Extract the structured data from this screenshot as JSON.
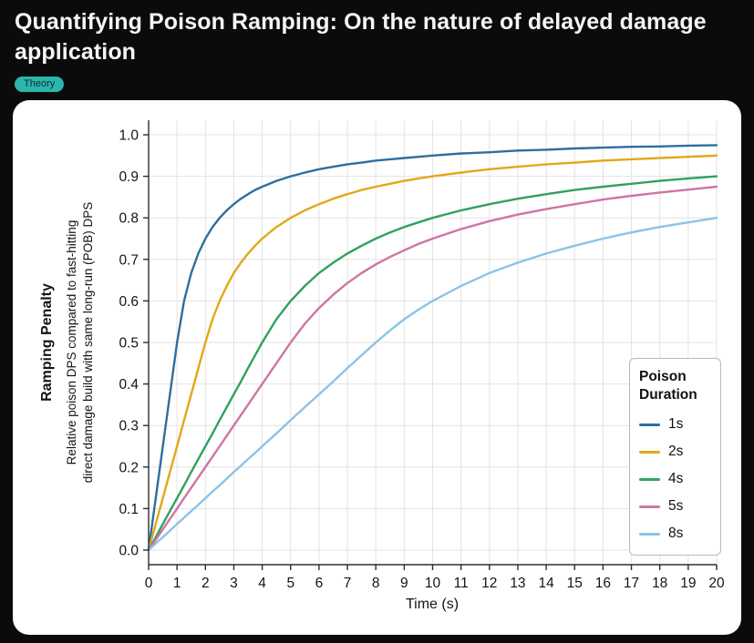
{
  "header": {
    "title": "Quantifying Poison Ramping: On the nature of delayed damage application",
    "tag": "Theory",
    "tag_bg": "#2bb5ad",
    "tag_text": "#083331",
    "page_bg": "#0b0b0b",
    "title_color": "#f5f5f5"
  },
  "chart_data": {
    "type": "line",
    "title": "",
    "xlabel": "Time (s)",
    "ylabel": "Ramping Penalty",
    "ylabel_sub": [
      "Relative poison DPS compared to fast-hitting",
      "direct damage build with same long-run (POB) DPS"
    ],
    "xlim": [
      0,
      20
    ],
    "ylim": [
      0,
      1.0
    ],
    "xticks": [
      0,
      1,
      2,
      3,
      4,
      5,
      6,
      7,
      8,
      9,
      10,
      11,
      12,
      13,
      14,
      15,
      16,
      17,
      18,
      19,
      20
    ],
    "yticks": [
      0.0,
      0.1,
      0.2,
      0.3,
      0.4,
      0.5,
      0.6,
      0.7,
      0.8,
      0.9,
      1.0
    ],
    "grid": true,
    "grid_color": "#e3e3e3",
    "axis_color": "#2e2e2e",
    "legend_title": "Poison Duration",
    "legend_position": "right",
    "x": [
      0,
      0.25,
      0.5,
      0.75,
      1,
      1.25,
      1.5,
      1.75,
      2,
      2.25,
      2.5,
      2.75,
      3,
      3.25,
      3.5,
      3.75,
      4,
      4.5,
      5,
      5.5,
      6,
      6.5,
      7,
      7.5,
      8,
      8.5,
      9,
      9.5,
      10,
      11,
      12,
      13,
      14,
      15,
      16,
      17,
      18,
      19,
      20
    ],
    "series": [
      {
        "name": "1s",
        "color": "#2e6f9e",
        "values": [
          0,
          0.125,
          0.25,
          0.375,
          0.5,
          0.6,
          0.667,
          0.714,
          0.75,
          0.778,
          0.8,
          0.818,
          0.833,
          0.846,
          0.857,
          0.867,
          0.875,
          0.889,
          0.9,
          0.909,
          0.917,
          0.923,
          0.929,
          0.933,
          0.938,
          0.941,
          0.944,
          0.947,
          0.95,
          0.955,
          0.958,
          0.962,
          0.964,
          0.967,
          0.969,
          0.971,
          0.972,
          0.974,
          0.975
        ]
      },
      {
        "name": "2s",
        "color": "#e2a818",
        "values": [
          0,
          0.063,
          0.125,
          0.188,
          0.25,
          0.313,
          0.375,
          0.438,
          0.5,
          0.556,
          0.6,
          0.636,
          0.667,
          0.692,
          0.714,
          0.733,
          0.75,
          0.778,
          0.8,
          0.818,
          0.833,
          0.846,
          0.857,
          0.867,
          0.875,
          0.882,
          0.889,
          0.895,
          0.9,
          0.909,
          0.917,
          0.923,
          0.929,
          0.933,
          0.938,
          0.941,
          0.944,
          0.947,
          0.95
        ]
      },
      {
        "name": "4s",
        "color": "#31a15f",
        "values": [
          0,
          0.031,
          0.063,
          0.094,
          0.125,
          0.156,
          0.188,
          0.219,
          0.25,
          0.281,
          0.313,
          0.344,
          0.375,
          0.406,
          0.438,
          0.469,
          0.5,
          0.556,
          0.6,
          0.636,
          0.667,
          0.692,
          0.714,
          0.733,
          0.75,
          0.765,
          0.778,
          0.789,
          0.8,
          0.818,
          0.833,
          0.846,
          0.857,
          0.867,
          0.875,
          0.882,
          0.889,
          0.895,
          0.9
        ]
      },
      {
        "name": "5s",
        "color": "#cf74a4",
        "values": [
          0,
          0.025,
          0.05,
          0.075,
          0.1,
          0.125,
          0.15,
          0.175,
          0.2,
          0.225,
          0.25,
          0.275,
          0.3,
          0.325,
          0.35,
          0.375,
          0.4,
          0.45,
          0.5,
          0.545,
          0.583,
          0.615,
          0.643,
          0.667,
          0.688,
          0.706,
          0.722,
          0.737,
          0.75,
          0.773,
          0.792,
          0.808,
          0.821,
          0.833,
          0.844,
          0.853,
          0.861,
          0.868,
          0.875
        ]
      },
      {
        "name": "8s",
        "color": "#8cc3e6",
        "values": [
          0,
          0.016,
          0.031,
          0.047,
          0.063,
          0.078,
          0.094,
          0.109,
          0.125,
          0.141,
          0.156,
          0.172,
          0.188,
          0.203,
          0.219,
          0.234,
          0.25,
          0.281,
          0.313,
          0.344,
          0.375,
          0.406,
          0.438,
          0.469,
          0.5,
          0.529,
          0.556,
          0.579,
          0.6,
          0.636,
          0.667,
          0.692,
          0.714,
          0.733,
          0.75,
          0.765,
          0.778,
          0.789,
          0.8
        ]
      }
    ]
  }
}
